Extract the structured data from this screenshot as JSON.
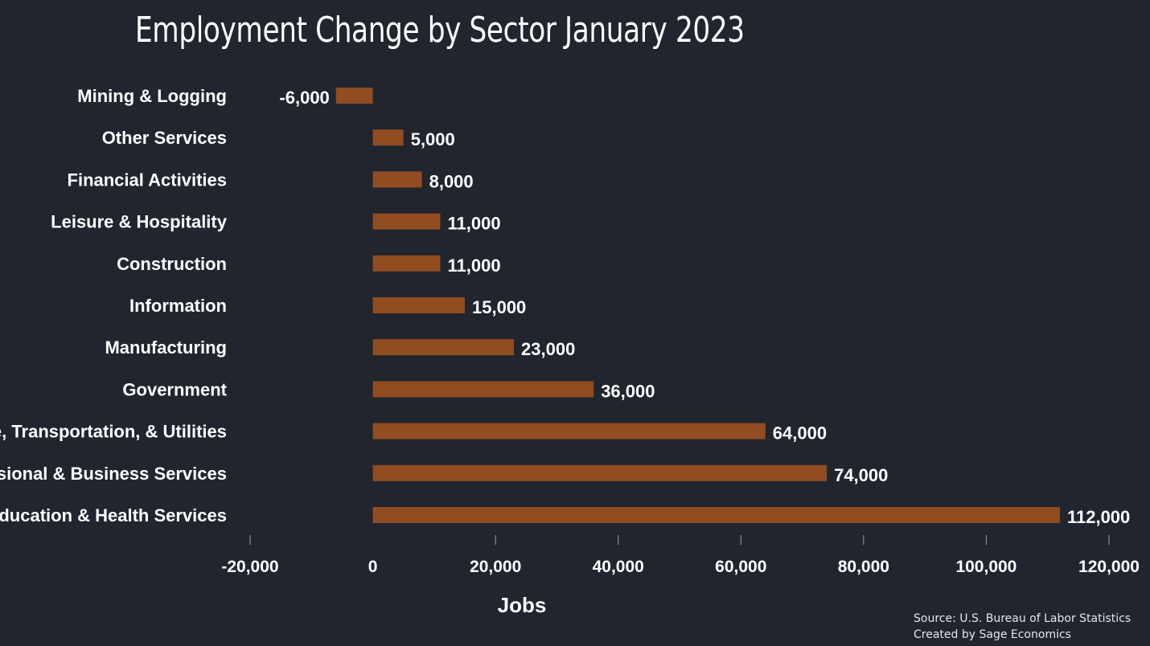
{
  "title": "Employment Change by Sector January 2023",
  "source_line1": "Source: U.S. Bureau of Labor Statistics",
  "source_line2": "Created by Sage Economics",
  "colors": {
    "background": "#21252e",
    "bar": "#914c22",
    "text": "#ffffff"
  },
  "chart_data": {
    "type": "bar",
    "orientation": "horizontal",
    "title": "Employment Change by Sector January 2023",
    "xlabel": "Jobs",
    "ylabel": "",
    "xlim": [
      -20000,
      120000
    ],
    "xticks": [
      -20000,
      0,
      20000,
      40000,
      60000,
      80000,
      100000,
      120000
    ],
    "xtick_labels": [
      "-20,000",
      "0",
      "20,000",
      "40,000",
      "60,000",
      "80,000",
      "100,000",
      "120,000"
    ],
    "grid": false,
    "categories": [
      "Mining & Logging",
      "Other Services",
      "Financial Activities",
      "Leisure & Hospitality",
      "Construction",
      "Information",
      "Manufacturing",
      "Government",
      "Trade, Transportation, & Utilities",
      "Professional & Business Services",
      "Education & Health Services"
    ],
    "values": [
      -6000,
      5000,
      8000,
      11000,
      11000,
      15000,
      23000,
      36000,
      64000,
      74000,
      112000
    ],
    "value_labels": [
      "-6,000",
      "5,000",
      "8,000",
      "11,000",
      "11,000",
      "15,000",
      "23,000",
      "36,000",
      "64,000",
      "74,000",
      "112,000"
    ]
  }
}
